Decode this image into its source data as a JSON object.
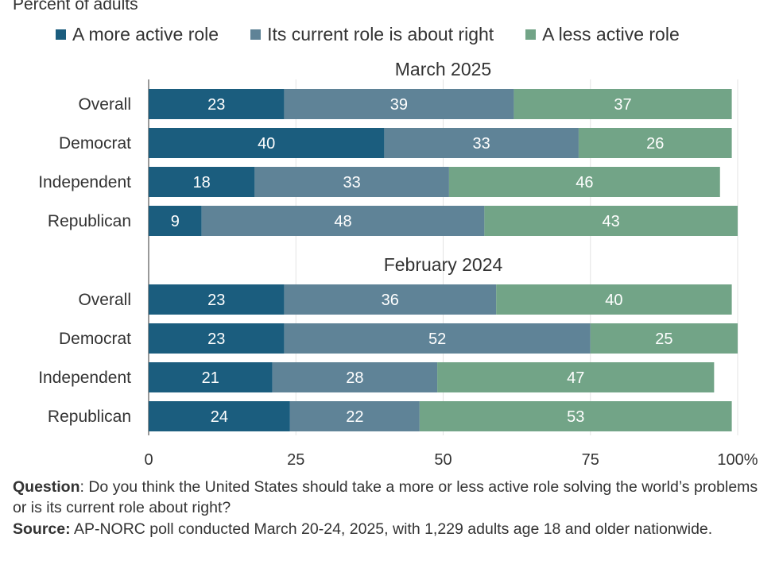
{
  "subtitle": "Percent of adults",
  "legend": [
    {
      "label": "A more active role",
      "color": "#1b5d7e"
    },
    {
      "label": "Its current role is about right",
      "color": "#5f8397"
    },
    {
      "label": "A less active role",
      "color": "#72a487"
    }
  ],
  "chart_data": {
    "type": "bar",
    "orientation": "horizontal",
    "stacked": true,
    "xlim": [
      0,
      100
    ],
    "x_ticks": [
      "0",
      "25",
      "50",
      "75",
      "100%"
    ],
    "x_tick_values": [
      0,
      25,
      50,
      75,
      100
    ],
    "grid": true,
    "legend_position": "top",
    "series_names": [
      "A more active role",
      "Its current role is about right",
      "A less active role"
    ],
    "colors": [
      "#1b5d7e",
      "#5f8397",
      "#72a487"
    ],
    "groups": [
      {
        "title": "March 2025",
        "rows": [
          {
            "label": "Overall",
            "values": [
              23,
              39,
              37
            ]
          },
          {
            "label": "Democrat",
            "values": [
              40,
              33,
              26
            ]
          },
          {
            "label": "Independent",
            "values": [
              18,
              33,
              46
            ]
          },
          {
            "label": "Republican",
            "values": [
              9,
              48,
              43
            ]
          }
        ]
      },
      {
        "title": "February 2024",
        "rows": [
          {
            "label": "Overall",
            "values": [
              23,
              36,
              40
            ]
          },
          {
            "label": "Democrat",
            "values": [
              23,
              52,
              25
            ]
          },
          {
            "label": "Independent",
            "values": [
              21,
              28,
              47
            ]
          },
          {
            "label": "Republican",
            "values": [
              24,
              22,
              53
            ]
          }
        ]
      }
    ]
  },
  "footnote": {
    "question_label": "Question",
    "question_text": ": Do you think the United States should take a more or less active role solving the world’s problems or is its current role about right?",
    "source_label": "Source:",
    "source_text": " AP-NORC poll conducted March 20-24, 2025, with 1,229 adults age 18 and older nationwide."
  }
}
